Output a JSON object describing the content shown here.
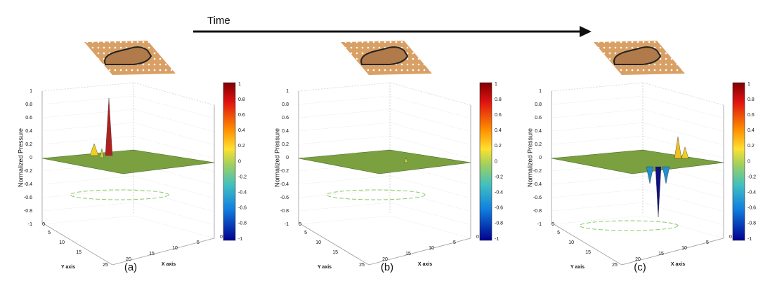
{
  "time_label": "Time",
  "panels": [
    {
      "caption": "(a)",
      "z_axis_label": "Normalized Pressure",
      "x_axis_label": "X axis",
      "y_axis_label": "Y axis",
      "z_ticks": [
        "1",
        "0.8",
        "0.6",
        "0.4",
        "0.2",
        "0",
        "-0.2",
        "-0.4",
        "-0.6",
        "-0.8",
        "-1"
      ],
      "x_ticks": [
        "25",
        "20",
        "15",
        "10",
        "5",
        "0"
      ],
      "y_ticks": [
        "0",
        "5",
        "10",
        "15"
      ],
      "colorbar_ticks": [
        "1",
        "0.8",
        "0.6",
        "0.4",
        "0.2",
        "0",
        "-0.2",
        "-0.4",
        "-0.6",
        "-0.8",
        "-1"
      ]
    },
    {
      "caption": "(b)",
      "z_axis_label": "Normalized Pressure",
      "x_axis_label": "X axis",
      "y_axis_label": "Y axis",
      "z_ticks": [
        "1",
        "0.8",
        "0.6",
        "0.4",
        "0.2",
        "0",
        "-0.2",
        "-0.4",
        "-0.6",
        "-0.8",
        "-1"
      ],
      "x_ticks": [
        "25",
        "20",
        "15",
        "10",
        "5",
        "0"
      ],
      "y_ticks": [
        "0",
        "5",
        "10",
        "15"
      ],
      "colorbar_ticks": [
        "1",
        "0.8",
        "0.6",
        "0.4",
        "0.2",
        "0",
        "-0.2",
        "-0.4",
        "-0.6",
        "-0.8",
        "-1"
      ]
    },
    {
      "caption": "(c)",
      "z_axis_label": "Normalized Pressure",
      "x_axis_label": "X axis",
      "y_axis_label": "Y axis",
      "z_ticks": [
        "1",
        "0.8",
        "0.6",
        "0.4",
        "0.2",
        "0",
        "-0.2",
        "-0.4",
        "-0.6",
        "-0.8",
        "-1"
      ],
      "x_ticks": [
        "25",
        "20",
        "15",
        "10",
        "5",
        "0"
      ],
      "y_ticks": [
        "0",
        "5",
        "10",
        "15"
      ],
      "colorbar_ticks": [
        "1",
        "0.8",
        "0.6",
        "0.4",
        "0.2",
        "0",
        "-0.2",
        "-0.4",
        "-0.6",
        "-0.8",
        "-1"
      ]
    }
  ]
}
